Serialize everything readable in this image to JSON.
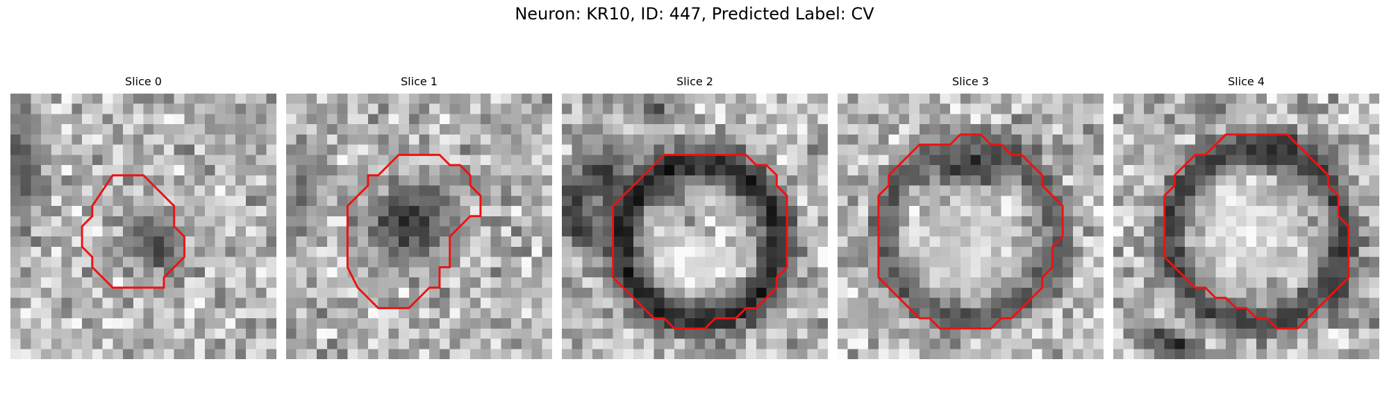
{
  "figure": {
    "title": "Neuron: KR10, ID: 447, Predicted Label: CV",
    "contour_color": "#ee1111",
    "colormap": "gray",
    "panels": [
      {
        "title": "Slice 0",
        "contour": [
          [
            10,
            8
          ],
          [
            13,
            8
          ],
          [
            16,
            11
          ],
          [
            16,
            13
          ],
          [
            17,
            14
          ],
          [
            17,
            16
          ],
          [
            15,
            18
          ],
          [
            15,
            19
          ],
          [
            10,
            19
          ],
          [
            8,
            17
          ],
          [
            8,
            16
          ],
          [
            7,
            15
          ],
          [
            7,
            13
          ],
          [
            8,
            12
          ],
          [
            8,
            11
          ]
        ],
        "blobs": [
          {
            "cx": 14,
            "cy": 14.5,
            "rx": 2.8,
            "ry": 4.5,
            "rot": -35,
            "level": 0.28
          },
          {
            "cx": 1,
            "cy": 7,
            "rx": 2.5,
            "ry": 8,
            "rot": 0,
            "level": 0.35
          },
          {
            "cx": 23,
            "cy": 3,
            "rx": 4,
            "ry": 3,
            "rot": 0,
            "level": 0.6
          }
        ]
      },
      {
        "title": "Slice 1",
        "contour": [
          [
            11,
            6
          ],
          [
            15,
            6
          ],
          [
            16,
            7
          ],
          [
            17,
            7
          ],
          [
            18,
            8
          ],
          [
            18,
            9
          ],
          [
            19,
            10
          ],
          [
            19,
            12
          ],
          [
            18,
            12
          ],
          [
            17,
            13
          ],
          [
            16,
            14
          ],
          [
            16,
            17
          ],
          [
            15,
            17
          ],
          [
            15,
            19
          ],
          [
            14,
            19
          ],
          [
            13,
            20
          ],
          [
            12,
            21
          ],
          [
            9,
            21
          ],
          [
            8,
            20
          ],
          [
            7,
            19
          ],
          [
            6,
            17
          ],
          [
            6,
            11
          ],
          [
            7,
            10
          ],
          [
            8,
            9
          ],
          [
            8,
            8
          ],
          [
            9,
            8
          ],
          [
            10,
            7
          ]
        ],
        "blobs": [
          {
            "cx": 12,
            "cy": 12.5,
            "rx": 5,
            "ry": 5,
            "rot": 0,
            "level": 0.2
          },
          {
            "cx": 1.5,
            "cy": 10,
            "rx": 2,
            "ry": 6,
            "rot": 0,
            "level": 0.4
          },
          {
            "cx": 22,
            "cy": 3,
            "rx": 3,
            "ry": 3,
            "rot": 0,
            "level": 0.6
          }
        ]
      },
      {
        "title": "Slice 2",
        "contour": [
          [
            10,
            6
          ],
          [
            18,
            6
          ],
          [
            19,
            7
          ],
          [
            20,
            7
          ],
          [
            21,
            8
          ],
          [
            21,
            9
          ],
          [
            22,
            10
          ],
          [
            22,
            17
          ],
          [
            21,
            18
          ],
          [
            21,
            19
          ],
          [
            20,
            20
          ],
          [
            19,
            21
          ],
          [
            18,
            21
          ],
          [
            17,
            22
          ],
          [
            15,
            22
          ],
          [
            14,
            23
          ],
          [
            11,
            23
          ],
          [
            10,
            22
          ],
          [
            9,
            22
          ],
          [
            7,
            20
          ],
          [
            6,
            19
          ],
          [
            5,
            18
          ],
          [
            5,
            11
          ],
          [
            7,
            9
          ],
          [
            8,
            8
          ],
          [
            9,
            7
          ]
        ],
        "ring": {
          "cx": 13.5,
          "cy": 14.5,
          "r": 7.7,
          "w": 2.2,
          "level": 0.15
        },
        "blobs": [
          {
            "cx": 12.5,
            "cy": 16.5,
            "rx": 5,
            "ry": 3.3,
            "rot": -10,
            "level": 0.95
          },
          {
            "cx": 1.5,
            "cy": 12,
            "rx": 2,
            "ry": 5,
            "rot": -20,
            "level": 0.15
          },
          {
            "cx": 4,
            "cy": 8,
            "rx": 3,
            "ry": 4,
            "rot": 35,
            "level": 0.25
          },
          {
            "cx": 9,
            "cy": 1.5,
            "rx": 2.5,
            "ry": 2,
            "rot": 0,
            "level": 0.35
          }
        ]
      },
      {
        "title": "Slice 3",
        "contour": [
          [
            12,
            4
          ],
          [
            14,
            4
          ],
          [
            15,
            5
          ],
          [
            16,
            5
          ],
          [
            17,
            6
          ],
          [
            18,
            6
          ],
          [
            19,
            7
          ],
          [
            20,
            8
          ],
          [
            20,
            9
          ],
          [
            21,
            10
          ],
          [
            22,
            11
          ],
          [
            22,
            14
          ],
          [
            21,
            15
          ],
          [
            21,
            17
          ],
          [
            20,
            18
          ],
          [
            20,
            19
          ],
          [
            19,
            20
          ],
          [
            18,
            21
          ],
          [
            17,
            22
          ],
          [
            16,
            22
          ],
          [
            15,
            23
          ],
          [
            10,
            23
          ],
          [
            9,
            22
          ],
          [
            8,
            22
          ],
          [
            6,
            20
          ],
          [
            5,
            19
          ],
          [
            4,
            18
          ],
          [
            4,
            10
          ],
          [
            5,
            9
          ],
          [
            5,
            8
          ],
          [
            6,
            7
          ],
          [
            7,
            6
          ],
          [
            8,
            5
          ],
          [
            11,
            5
          ]
        ],
        "ring": {
          "cx": 13,
          "cy": 13.5,
          "r": 8.5,
          "w": 1.8,
          "level": 0.35
        },
        "blobs": [
          {
            "cx": 13.5,
            "cy": 7,
            "rx": 5,
            "ry": 2.5,
            "rot": 0,
            "level": 0.1
          },
          {
            "cx": 13,
            "cy": 15,
            "rx": 5.5,
            "ry": 5.5,
            "rot": 0,
            "level": 0.82
          }
        ]
      },
      {
        "title": "Slice 4",
        "contour": [
          [
            11,
            4
          ],
          [
            17,
            4
          ],
          [
            18,
            5
          ],
          [
            19,
            6
          ],
          [
            20,
            7
          ],
          [
            21,
            8
          ],
          [
            21,
            9
          ],
          [
            22,
            10
          ],
          [
            22,
            12
          ],
          [
            23,
            13
          ],
          [
            23,
            18
          ],
          [
            22,
            19
          ],
          [
            21,
            20
          ],
          [
            20,
            21
          ],
          [
            19,
            22
          ],
          [
            18,
            23
          ],
          [
            16,
            23
          ],
          [
            15,
            22
          ],
          [
            14,
            22
          ],
          [
            13,
            21
          ],
          [
            12,
            21
          ],
          [
            11,
            20
          ],
          [
            10,
            20
          ],
          [
            9,
            19
          ],
          [
            8,
            19
          ],
          [
            7,
            18
          ],
          [
            5,
            16
          ],
          [
            5,
            10
          ],
          [
            6,
            9
          ],
          [
            6,
            8
          ],
          [
            7,
            7
          ],
          [
            8,
            6
          ],
          [
            9,
            6
          ],
          [
            10,
            5
          ]
        ],
        "ring": {
          "cx": 14,
          "cy": 13.8,
          "r": 8.5,
          "w": 2.0,
          "level": 0.25
        },
        "blobs": [
          {
            "cx": 16,
            "cy": 5.5,
            "rx": 5,
            "ry": 2,
            "rot": 0,
            "level": 0.08
          },
          {
            "cx": 22,
            "cy": 17,
            "rx": 1.6,
            "ry": 4.5,
            "rot": 0,
            "level": 0.1
          },
          {
            "cx": 13,
            "cy": 13.5,
            "rx": 6,
            "ry": 6,
            "rot": 0,
            "level": 0.9
          },
          {
            "cx": 6,
            "cy": 24.5,
            "rx": 5,
            "ry": 1.6,
            "rot": 25,
            "level": 0.2
          },
          {
            "cx": 9,
            "cy": 1,
            "rx": 3,
            "ry": 1.5,
            "rot": 0,
            "level": 0.35
          }
        ]
      }
    ]
  }
}
